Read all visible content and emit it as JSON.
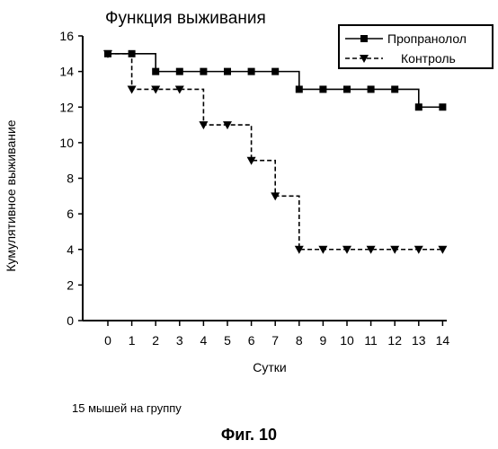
{
  "chart_data": {
    "type": "line",
    "title": "Функция выживания",
    "xlabel": "Сутки",
    "ylabel": "Кумулятивное выживание",
    "xlim": [
      0,
      14
    ],
    "ylim": [
      0,
      16
    ],
    "x_ticks": [
      "0",
      "1",
      "2",
      "3",
      "4",
      "5",
      "6",
      "7",
      "8",
      "9",
      "10",
      "11",
      "12",
      "13",
      "14"
    ],
    "y_ticks": [
      "0",
      "2",
      "4",
      "6",
      "8",
      "10",
      "12",
      "14",
      "16"
    ],
    "legend_position": "top-right",
    "line_style": "step",
    "series": [
      {
        "name": "Пропранолол",
        "marker": "square",
        "dash": "solid",
        "x": [
          0,
          1,
          2,
          3,
          4,
          5,
          6,
          7,
          8,
          9,
          10,
          11,
          12,
          13,
          14
        ],
        "y": [
          15,
          15,
          14,
          14,
          14,
          14,
          14,
          14,
          13,
          13,
          13,
          13,
          13,
          12,
          12
        ]
      },
      {
        "name": "Контроль",
        "marker": "triangle-down",
        "dash": "dashed",
        "x": [
          0,
          1,
          2,
          3,
          4,
          5,
          6,
          7,
          8,
          9,
          10,
          11,
          12,
          13,
          14
        ],
        "y": [
          15,
          13,
          13,
          13,
          11,
          11,
          9,
          7,
          4,
          4,
          4,
          4,
          4,
          4,
          4
        ]
      }
    ]
  },
  "footnote": "15 мышей на группу",
  "caption": "Фиг. 10"
}
